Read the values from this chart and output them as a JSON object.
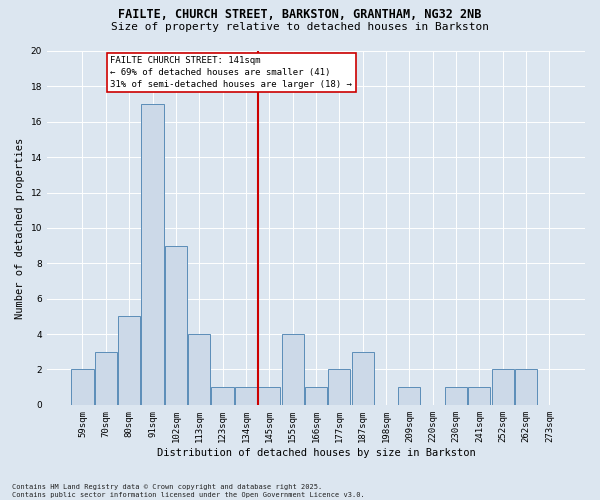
{
  "title_line1": "FAILTE, CHURCH STREET, BARKSTON, GRANTHAM, NG32 2NB",
  "title_line2": "Size of property relative to detached houses in Barkston",
  "xlabel": "Distribution of detached houses by size in Barkston",
  "ylabel": "Number of detached properties",
  "categories": [
    "59sqm",
    "70sqm",
    "80sqm",
    "91sqm",
    "102sqm",
    "113sqm",
    "123sqm",
    "134sqm",
    "145sqm",
    "155sqm",
    "166sqm",
    "177sqm",
    "187sqm",
    "198sqm",
    "209sqm",
    "220sqm",
    "230sqm",
    "241sqm",
    "252sqm",
    "262sqm",
    "273sqm"
  ],
  "values": [
    2,
    3,
    5,
    17,
    9,
    4,
    1,
    1,
    1,
    4,
    1,
    2,
    3,
    0,
    1,
    0,
    1,
    1,
    2,
    2,
    0
  ],
  "bar_color": "#ccd9e8",
  "bar_edge_color": "#5b8db8",
  "vline_x": 7.5,
  "highlight_line_label": "FAILTE CHURCH STREET: 141sqm",
  "annotation_line2": "← 69% of detached houses are smaller (41)",
  "annotation_line3": "31% of semi-detached houses are larger (18) →",
  "annotation_box_color": "#ffffff",
  "annotation_box_edge_color": "#cc0000",
  "vline_color": "#cc0000",
  "ylim": [
    0,
    20
  ],
  "yticks": [
    0,
    2,
    4,
    6,
    8,
    10,
    12,
    14,
    16,
    18,
    20
  ],
  "background_color": "#dce6f0",
  "plot_bg_color": "#dce6f0",
  "footer_text": "Contains HM Land Registry data © Crown copyright and database right 2025.\nContains public sector information licensed under the Open Government Licence v3.0.",
  "title_fontsize": 8.5,
  "subtitle_fontsize": 8,
  "axis_label_fontsize": 7.5,
  "tick_fontsize": 6.5,
  "annotation_fontsize": 6.5,
  "footer_fontsize": 5
}
